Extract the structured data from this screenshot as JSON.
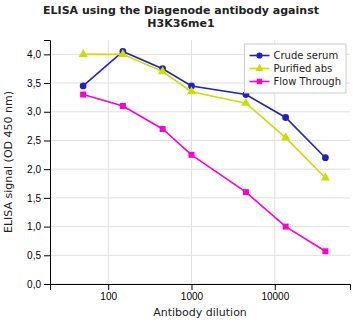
{
  "chart_data": {
    "type": "line",
    "title": "ELISA using the Diagenode antibody against\nH3K36me1",
    "x_label": "Antibody dilution",
    "y_label": "ELISA signal (OD 450 nm)",
    "x": [
      50,
      150,
      450,
      1000,
      4500,
      13500,
      40500
    ],
    "series": [
      {
        "name": "Crude serum",
        "color": "#2222bb",
        "marker": "circle",
        "values": [
          3.45,
          4.05,
          3.75,
          3.45,
          3.3,
          2.9,
          2.2
        ]
      },
      {
        "name": "Purified abs",
        "color": "#ccdd00",
        "marker": "triangle",
        "values": [
          4.0,
          4.0,
          3.7,
          3.35,
          3.15,
          2.55,
          1.85
        ]
      },
      {
        "name": "Flow Through",
        "color": "#ff00cc",
        "marker": "square",
        "values": [
          3.3,
          3.1,
          2.7,
          2.25,
          1.6,
          1.0,
          0.57
        ]
      }
    ],
    "log": "x",
    "xlim": [
      20,
      80000
    ],
    "xticks": [
      100,
      1000,
      10000
    ],
    "ylim": [
      0.0,
      4.25
    ],
    "yticks": [
      {
        "value": 0.0,
        "label": "0,0"
      },
      {
        "value": 0.5,
        "label": "0,5"
      },
      {
        "value": 1.0,
        "label": "1,0"
      },
      {
        "value": 1.5,
        "label": "1,5"
      },
      {
        "value": 2.0,
        "label": "2,0"
      },
      {
        "value": 2.5,
        "label": "2,5"
      },
      {
        "value": 3.0,
        "label": "3,0"
      },
      {
        "value": 3.5,
        "label": "3,5"
      },
      {
        "value": 4.0,
        "label": "4,0"
      }
    ],
    "grid": true,
    "legend": "upper right"
  }
}
